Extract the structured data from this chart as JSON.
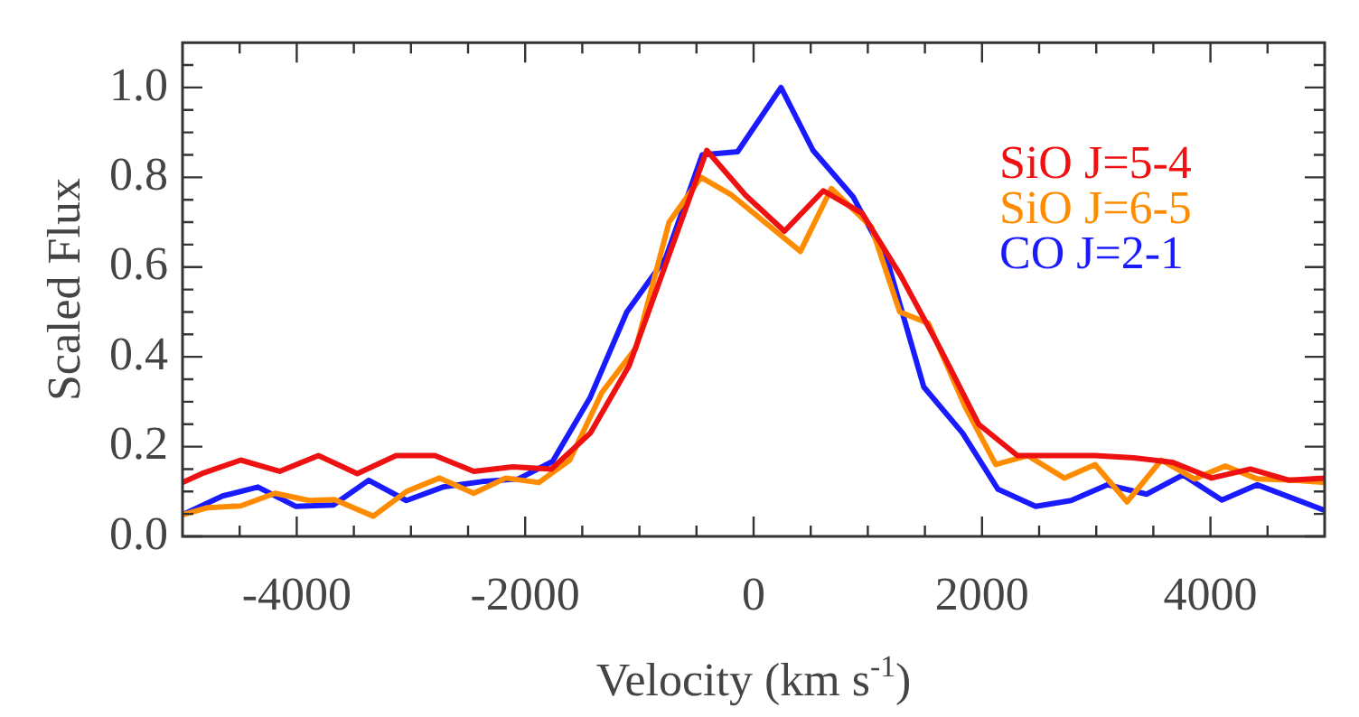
{
  "chart_data": {
    "type": "line",
    "xlabel": "Velocity (km s$^{-1}$)",
    "ylabel": "Scaled Flux",
    "xlim": [
      -5000,
      5000
    ],
    "xticks": [
      {
        "value": -4500,
        "label": null
      },
      -4000,
      {
        "value": -3500,
        "label": null
      },
      {
        "value": -3000,
        "label": null
      },
      {
        "value": -2500,
        "label": null
      },
      -2000,
      {
        "value": -1500,
        "label": null
      },
      {
        "value": -1000,
        "label": null
      },
      {
        "value": -500,
        "label": null
      },
      0,
      {
        "value": 500,
        "label": null
      },
      {
        "value": 1000,
        "label": null
      },
      {
        "value": 1500,
        "label": null
      },
      2000,
      {
        "value": 2500,
        "label": null
      },
      {
        "value": 3000,
        "label": null
      },
      {
        "value": 3500,
        "label": null
      },
      4000,
      {
        "value": 4500,
        "label": null
      }
    ],
    "ylim": [
      0,
      1.1
    ],
    "yticks": [
      {
        "value": 0,
        "label": "0.0"
      },
      {
        "value": 0.05,
        "label": null
      },
      {
        "value": 0.1,
        "label": null
      },
      {
        "value": 0.15,
        "label": null
      },
      {
        "value": 0.2,
        "label": "0.2"
      },
      {
        "value": 0.25,
        "label": null
      },
      {
        "value": 0.3,
        "label": null
      },
      {
        "value": 0.35,
        "label": null
      },
      {
        "value": 0.4,
        "label": "0.4"
      },
      {
        "value": 0.45,
        "label": null
      },
      {
        "value": 0.5,
        "label": null
      },
      {
        "value": 0.55,
        "label": null
      },
      {
        "value": 0.6,
        "label": "0.6"
      },
      {
        "value": 0.65,
        "label": null
      },
      {
        "value": 0.7,
        "label": null
      },
      {
        "value": 0.75,
        "label": null
      },
      {
        "value": 0.8,
        "label": "0.8"
      },
      {
        "value": 0.85,
        "label": null
      },
      {
        "value": 0.9,
        "label": null
      },
      {
        "value": 0.95,
        "label": null
      },
      {
        "value": 1.0,
        "label": "1.0"
      },
      {
        "value": 1.05,
        "label": null
      }
    ],
    "grid": false,
    "legend": "top right",
    "marker": "none",
    "line_style": "solid",
    "series": [
      {
        "name": "SiO J=5-4",
        "color": "#ee1111",
        "x": [
          -5000,
          -4830,
          -4490,
          -4150,
          -3810,
          -3470,
          -3130,
          -2790,
          -2450,
          -2110,
          -1770,
          -1430,
          -1090,
          -750,
          -410,
          -70,
          270,
          610,
          950,
          1290,
          1630,
          1970,
          2310,
          2650,
          2990,
          3330,
          3670,
          4010,
          4350,
          4690,
          5000
        ],
        "values": [
          0.12,
          0.14,
          0.17,
          0.145,
          0.18,
          0.14,
          0.18,
          0.18,
          0.145,
          0.155,
          0.15,
          0.23,
          0.38,
          0.62,
          0.86,
          0.76,
          0.68,
          0.77,
          0.72,
          0.58,
          0.42,
          0.25,
          0.18,
          0.18,
          0.18,
          0.175,
          0.165,
          0.13,
          0.15,
          0.125,
          0.13
        ]
      },
      {
        "name": "SiO J=6-5",
        "color": "#ff8c00",
        "x": [
          -5000,
          -4780,
          -4490,
          -4190,
          -3890,
          -3670,
          -3330,
          -3040,
          -2750,
          -2450,
          -2170,
          -1880,
          -1610,
          -1330,
          -1030,
          -740,
          -460,
          -190,
          410,
          680,
          1030,
          1280,
          1530,
          1850,
          2120,
          2400,
          2720,
          2990,
          3270,
          3570,
          3860,
          4130,
          4410,
          4730,
          5000
        ],
        "values": [
          0.048,
          0.064,
          0.068,
          0.096,
          0.08,
          0.082,
          0.045,
          0.1,
          0.13,
          0.096,
          0.13,
          0.12,
          0.17,
          0.32,
          0.42,
          0.7,
          0.8,
          0.76,
          0.635,
          0.775,
          0.69,
          0.5,
          0.475,
          0.29,
          0.16,
          0.18,
          0.13,
          0.16,
          0.077,
          0.17,
          0.128,
          0.157,
          0.128,
          0.125,
          0.12
        ]
      },
      {
        "name": "CO J=2-1",
        "color": "#1a1aff",
        "x": [
          -5000,
          -4650,
          -4340,
          -4010,
          -3680,
          -3370,
          -3040,
          -2720,
          -2380,
          -2060,
          -1760,
          -1430,
          -1110,
          -770,
          -450,
          -140,
          240,
          520,
          870,
          1170,
          1490,
          1830,
          2140,
          2470,
          2780,
          3100,
          3440,
          3760,
          4100,
          4410,
          5000
        ],
        "values": [
          0.048,
          0.09,
          0.11,
          0.067,
          0.07,
          0.125,
          0.08,
          0.11,
          0.122,
          0.128,
          0.167,
          0.31,
          0.5,
          0.62,
          0.85,
          0.857,
          1.0,
          0.86,
          0.757,
          0.615,
          0.333,
          0.23,
          0.105,
          0.067,
          0.08,
          0.115,
          0.094,
          0.137,
          0.081,
          0.115,
          0.058
        ]
      }
    ]
  }
}
